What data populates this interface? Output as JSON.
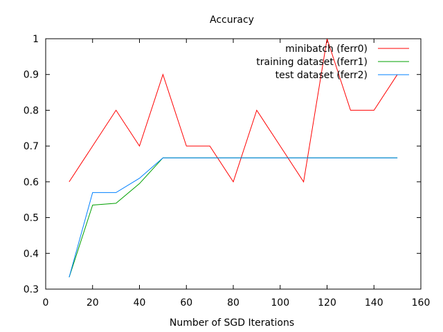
{
  "chart_data": {
    "type": "line",
    "title": "Accuracy",
    "xlabel": "Number of SGD Iterations",
    "ylabel": "",
    "xlim": [
      0,
      160
    ],
    "ylim": [
      0.3,
      1
    ],
    "xticks": [
      0,
      20,
      40,
      60,
      80,
      100,
      120,
      140,
      160
    ],
    "yticks": [
      0.3,
      0.4,
      0.5,
      0.6,
      0.7,
      0.8,
      0.9,
      1
    ],
    "grid": false,
    "legend_position": "top-right",
    "series": [
      {
        "name": "minibatch (ferr0)",
        "color": "#ff0000",
        "x": [
          10,
          20,
          30,
          40,
          50,
          60,
          70,
          80,
          90,
          100,
          110,
          120,
          130,
          140,
          150
        ],
        "y": [
          0.6,
          0.7,
          0.8,
          0.7,
          0.9,
          0.7,
          0.7,
          0.6,
          0.8,
          0.7,
          0.6,
          1.0,
          0.8,
          0.8,
          0.9
        ]
      },
      {
        "name": "training dataset (ferr1)",
        "color": "#00a000",
        "x": [
          10,
          20,
          30,
          40,
          50,
          60,
          70,
          80,
          90,
          100,
          110,
          120,
          130,
          140,
          150
        ],
        "y": [
          0.333,
          0.535,
          0.54,
          0.595,
          0.667,
          0.667,
          0.667,
          0.667,
          0.667,
          0.667,
          0.667,
          0.667,
          0.667,
          0.667,
          0.667
        ]
      },
      {
        "name": "test dataset (ferr2)",
        "color": "#0080ff",
        "x": [
          10,
          20,
          30,
          40,
          50,
          60,
          70,
          80,
          90,
          100,
          110,
          120,
          130,
          140,
          150
        ],
        "y": [
          0.333,
          0.57,
          0.57,
          0.61,
          0.667,
          0.667,
          0.667,
          0.667,
          0.667,
          0.667,
          0.667,
          0.667,
          0.667,
          0.667,
          0.667
        ]
      }
    ]
  }
}
